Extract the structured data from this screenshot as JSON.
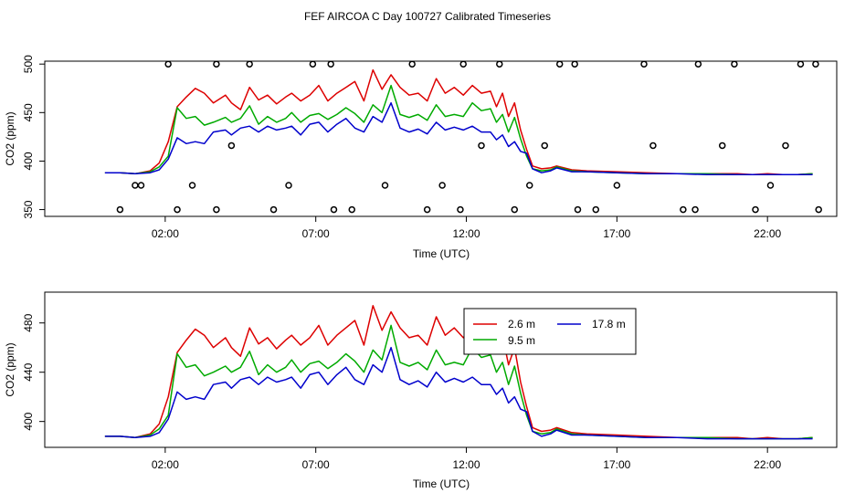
{
  "title": "FEF AIRCOA C  Day 100727  Calibrated Timeseries",
  "colors": {
    "s1": "#dd0000",
    "s2": "#00aa00",
    "s3": "#0000cc",
    "axis": "#000000"
  },
  "chart_data": [
    {
      "type": "line",
      "title": "FEF AIRCOA C  Day 100727  Calibrated Timeseries",
      "xlabel": "Time (UTC)",
      "ylabel": "CO2 (ppm)",
      "xlim": [
        -2.0,
        24.3
      ],
      "ylim": [
        343,
        503
      ],
      "xticks": [
        2,
        7,
        12,
        17,
        22
      ],
      "xtick_labels": [
        "02:00",
        "07:00",
        "12:00",
        "17:00",
        "22:00"
      ],
      "yticks": [
        350,
        400,
        450,
        500
      ],
      "ytick_labels": [
        "350",
        "400",
        "450",
        "500"
      ],
      "series": [
        {
          "name": "2.6 m",
          "color": "#dd0000",
          "x": [
            0,
            0.5,
            1,
            1.5,
            1.8,
            2.1,
            2.4,
            2.7,
            3,
            3.3,
            3.6,
            4,
            4.2,
            4.5,
            4.8,
            5.1,
            5.4,
            5.7,
            6,
            6.2,
            6.5,
            6.8,
            7.1,
            7.4,
            7.7,
            8,
            8.3,
            8.6,
            8.9,
            9.2,
            9.5,
            9.8,
            10.1,
            10.4,
            10.7,
            11,
            11.3,
            11.6,
            11.9,
            12.2,
            12.5,
            12.8,
            13,
            13.2,
            13.4,
            13.6,
            13.8,
            14,
            14.2,
            14.5,
            14.8,
            15,
            15.5,
            16,
            17,
            18,
            19,
            20,
            21,
            21.5,
            22,
            22.5,
            23,
            23.5
          ],
          "y": [
            388,
            388,
            387,
            390,
            398,
            420,
            456,
            466,
            475,
            470,
            460,
            468,
            460,
            453,
            476,
            463,
            468,
            459,
            466,
            470,
            462,
            468,
            478,
            462,
            470,
            476,
            482,
            462,
            494,
            474,
            489,
            476,
            468,
            470,
            462,
            485,
            470,
            476,
            468,
            478,
            470,
            472,
            456,
            470,
            446,
            460,
            432,
            412,
            395,
            392,
            393,
            395,
            391,
            390,
            389,
            388,
            387,
            387,
            387,
            386,
            387,
            386,
            386,
            387
          ]
        },
        {
          "name": "9.5 m",
          "color": "#00aa00",
          "x": [
            0,
            0.5,
            1,
            1.5,
            1.8,
            2.1,
            2.4,
            2.7,
            3,
            3.3,
            3.6,
            4,
            4.2,
            4.5,
            4.8,
            5.1,
            5.4,
            5.7,
            6,
            6.2,
            6.5,
            6.8,
            7.1,
            7.4,
            7.7,
            8,
            8.3,
            8.6,
            8.9,
            9.2,
            9.5,
            9.8,
            10.1,
            10.4,
            10.7,
            11,
            11.3,
            11.6,
            11.9,
            12.2,
            12.5,
            12.8,
            13,
            13.2,
            13.4,
            13.6,
            13.8,
            14,
            14.2,
            14.5,
            14.8,
            15,
            15.5,
            16,
            17,
            18,
            19,
            20,
            21,
            21.5,
            22,
            22.5,
            23,
            23.5
          ],
          "y": [
            388,
            388,
            387,
            389,
            394,
            405,
            455,
            444,
            446,
            437,
            440,
            445,
            440,
            444,
            457,
            438,
            446,
            440,
            444,
            450,
            440,
            447,
            449,
            443,
            448,
            455,
            449,
            440,
            458,
            450,
            478,
            448,
            445,
            448,
            442,
            458,
            446,
            448,
            446,
            460,
            452,
            454,
            440,
            448,
            430,
            445,
            423,
            405,
            392,
            390,
            391,
            394,
            390,
            389,
            388,
            387,
            387,
            387,
            386,
            386,
            386,
            386,
            386,
            387
          ]
        },
        {
          "name": "17.8 m",
          "color": "#0000cc",
          "x": [
            0,
            0.5,
            1,
            1.5,
            1.8,
            2.1,
            2.4,
            2.7,
            3,
            3.3,
            3.6,
            4,
            4.2,
            4.5,
            4.8,
            5.1,
            5.4,
            5.7,
            6,
            6.2,
            6.5,
            6.8,
            7.1,
            7.4,
            7.7,
            8,
            8.3,
            8.6,
            8.9,
            9.2,
            9.5,
            9.8,
            10.1,
            10.4,
            10.7,
            11,
            11.3,
            11.6,
            11.9,
            12.2,
            12.5,
            12.8,
            13,
            13.2,
            13.4,
            13.6,
            13.8,
            14,
            14.2,
            14.5,
            14.8,
            15,
            15.5,
            16,
            17,
            18,
            19,
            20,
            21,
            21.5,
            22,
            22.5,
            23,
            23.5
          ],
          "y": [
            388,
            388,
            387,
            388,
            391,
            402,
            424,
            418,
            420,
            418,
            430,
            432,
            427,
            434,
            436,
            430,
            436,
            432,
            434,
            436,
            427,
            438,
            440,
            430,
            438,
            444,
            434,
            430,
            446,
            440,
            460,
            434,
            430,
            433,
            428,
            440,
            432,
            435,
            432,
            436,
            430,
            430,
            422,
            427,
            415,
            420,
            410,
            408,
            392,
            388,
            390,
            393,
            389,
            389,
            388,
            387,
            387,
            386,
            386,
            386,
            386,
            386,
            386,
            386
          ]
        }
      ],
      "flags": {
        "x": [
          1.2,
          2.1,
          3.7,
          4.8,
          6.9,
          7.5,
          10.2,
          11.9,
          13.1,
          15.1,
          15.6,
          17.9,
          19.7,
          20.9,
          23.1,
          23.6,
          0.5,
          1,
          2.4,
          2.9,
          3.7,
          4.2,
          5.6,
          6.1,
          7.6,
          8.2,
          9.3,
          10.7,
          11.2,
          11.8,
          12.5,
          13.6,
          14.1,
          14.6,
          15.7,
          16.3,
          17,
          18.2,
          19.2,
          19.6,
          20.5,
          21.6,
          22.1,
          22.6,
          23.7
        ],
        "y": [
          375,
          500,
          500,
          500,
          500,
          500,
          500,
          500,
          500,
          500,
          500,
          500,
          500,
          500,
          500,
          500,
          350,
          375,
          350,
          375,
          350,
          416,
          350,
          375,
          350,
          350,
          375,
          350,
          375,
          350,
          416,
          350,
          375,
          416,
          350,
          350,
          375,
          416,
          350,
          350,
          416,
          350,
          375,
          416,
          350
        ]
      }
    },
    {
      "type": "line",
      "xlabel": "Time (UTC)",
      "ylabel": "CO2 (ppm)",
      "xlim": [
        -2.0,
        24.3
      ],
      "ylim": [
        379,
        505
      ],
      "xticks": [
        2,
        7,
        12,
        17,
        22
      ],
      "xtick_labels": [
        "02:00",
        "07:00",
        "12:00",
        "17:00",
        "22:00"
      ],
      "yticks": [
        400,
        440,
        480
      ],
      "ytick_labels": [
        "400",
        "440",
        "480"
      ],
      "legend": {
        "position": "top-right",
        "entries": [
          {
            "label": "2.6 m",
            "color": "#dd0000"
          },
          {
            "label": "17.8 m",
            "color": "#0000cc"
          },
          {
            "label": "9.5 m",
            "color": "#00aa00"
          }
        ]
      },
      "series": [
        {
          "name": "2.6 m",
          "color": "#dd0000",
          "x": [
            0,
            0.5,
            1,
            1.5,
            1.8,
            2.1,
            2.4,
            2.7,
            3,
            3.3,
            3.6,
            4,
            4.2,
            4.5,
            4.8,
            5.1,
            5.4,
            5.7,
            6,
            6.2,
            6.5,
            6.8,
            7.1,
            7.4,
            7.7,
            8,
            8.3,
            8.6,
            8.9,
            9.2,
            9.5,
            9.8,
            10.1,
            10.4,
            10.7,
            11,
            11.3,
            11.6,
            11.9,
            12.2,
            12.5,
            12.8,
            13,
            13.2,
            13.4,
            13.6,
            13.8,
            14,
            14.2,
            14.5,
            14.8,
            15,
            15.5,
            16,
            17,
            18,
            19,
            20,
            21,
            21.5,
            22,
            22.5,
            23,
            23.5
          ],
          "y": [
            388,
            388,
            387,
            390,
            398,
            420,
            456,
            466,
            475,
            470,
            460,
            468,
            460,
            453,
            476,
            463,
            468,
            459,
            466,
            470,
            462,
            468,
            478,
            462,
            470,
            476,
            482,
            462,
            494,
            474,
            489,
            476,
            468,
            470,
            462,
            485,
            470,
            476,
            468,
            478,
            470,
            472,
            456,
            470,
            446,
            460,
            432,
            412,
            395,
            392,
            393,
            395,
            391,
            390,
            389,
            388,
            387,
            387,
            387,
            386,
            387,
            386,
            386,
            387
          ]
        },
        {
          "name": "9.5 m",
          "color": "#00aa00",
          "x": [
            0,
            0.5,
            1,
            1.5,
            1.8,
            2.1,
            2.4,
            2.7,
            3,
            3.3,
            3.6,
            4,
            4.2,
            4.5,
            4.8,
            5.1,
            5.4,
            5.7,
            6,
            6.2,
            6.5,
            6.8,
            7.1,
            7.4,
            7.7,
            8,
            8.3,
            8.6,
            8.9,
            9.2,
            9.5,
            9.8,
            10.1,
            10.4,
            10.7,
            11,
            11.3,
            11.6,
            11.9,
            12.2,
            12.5,
            12.8,
            13,
            13.2,
            13.4,
            13.6,
            13.8,
            14,
            14.2,
            14.5,
            14.8,
            15,
            15.5,
            16,
            17,
            18,
            19,
            20,
            21,
            21.5,
            22,
            22.5,
            23,
            23.5
          ],
          "y": [
            388,
            388,
            387,
            389,
            394,
            405,
            455,
            444,
            446,
            437,
            440,
            445,
            440,
            444,
            457,
            438,
            446,
            440,
            444,
            450,
            440,
            447,
            449,
            443,
            448,
            455,
            449,
            440,
            458,
            450,
            478,
            448,
            445,
            448,
            442,
            458,
            446,
            448,
            446,
            460,
            452,
            454,
            440,
            448,
            430,
            445,
            423,
            405,
            392,
            390,
            391,
            394,
            390,
            389,
            388,
            387,
            387,
            387,
            386,
            386,
            386,
            386,
            386,
            387
          ]
        },
        {
          "name": "17.8 m",
          "color": "#0000cc",
          "x": [
            0,
            0.5,
            1,
            1.5,
            1.8,
            2.1,
            2.4,
            2.7,
            3,
            3.3,
            3.6,
            4,
            4.2,
            4.5,
            4.8,
            5.1,
            5.4,
            5.7,
            6,
            6.2,
            6.5,
            6.8,
            7.1,
            7.4,
            7.7,
            8,
            8.3,
            8.6,
            8.9,
            9.2,
            9.5,
            9.8,
            10.1,
            10.4,
            10.7,
            11,
            11.3,
            11.6,
            11.9,
            12.2,
            12.5,
            12.8,
            13,
            13.2,
            13.4,
            13.6,
            13.8,
            14,
            14.2,
            14.5,
            14.8,
            15,
            15.5,
            16,
            17,
            18,
            19,
            20,
            21,
            21.5,
            22,
            22.5,
            23,
            23.5
          ],
          "y": [
            388,
            388,
            387,
            388,
            391,
            402,
            424,
            418,
            420,
            418,
            430,
            432,
            427,
            434,
            436,
            430,
            436,
            432,
            434,
            436,
            427,
            438,
            440,
            430,
            438,
            444,
            434,
            430,
            446,
            440,
            460,
            434,
            430,
            433,
            428,
            440,
            432,
            435,
            432,
            436,
            430,
            430,
            422,
            427,
            415,
            420,
            410,
            408,
            392,
            388,
            390,
            393,
            389,
            389,
            388,
            387,
            387,
            386,
            386,
            386,
            386,
            386,
            386,
            386
          ]
        }
      ]
    }
  ]
}
